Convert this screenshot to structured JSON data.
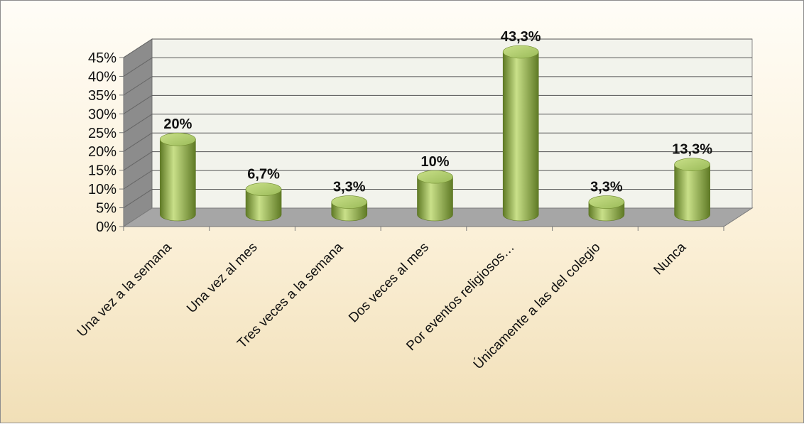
{
  "chart_data": {
    "type": "bar",
    "title": "",
    "xlabel": "",
    "ylabel": "",
    "ylim": [
      0,
      45
    ],
    "y_ticks": [
      "0%",
      "5%",
      "10%",
      "15%",
      "20%",
      "25%",
      "30%",
      "35%",
      "40%",
      "45%"
    ],
    "categories": [
      "Una vez a la semana",
      "Una vez al mes",
      "Tres veces a la semana",
      "Dos veces al mes",
      "Por eventos religiosos…",
      "Únicamente a las del colegio",
      "Nunca"
    ],
    "values": [
      20,
      6.7,
      3.3,
      10,
      43.3,
      3.3,
      13.3
    ],
    "data_labels": [
      "20%",
      "6,7%",
      "3,3%",
      "10%",
      "43,3%",
      "3,3%",
      "13,3%"
    ],
    "grid": true,
    "style": "3d-cylinder",
    "colors": {
      "bar": "#9bbb59",
      "bar_dark": "#5f7a25",
      "bar_light": "#c9e089",
      "back_wall": "#f2f3ec",
      "side_wall": "#8c8c8c",
      "floor": "#a6a6a6",
      "gridline": "#555555"
    }
  }
}
